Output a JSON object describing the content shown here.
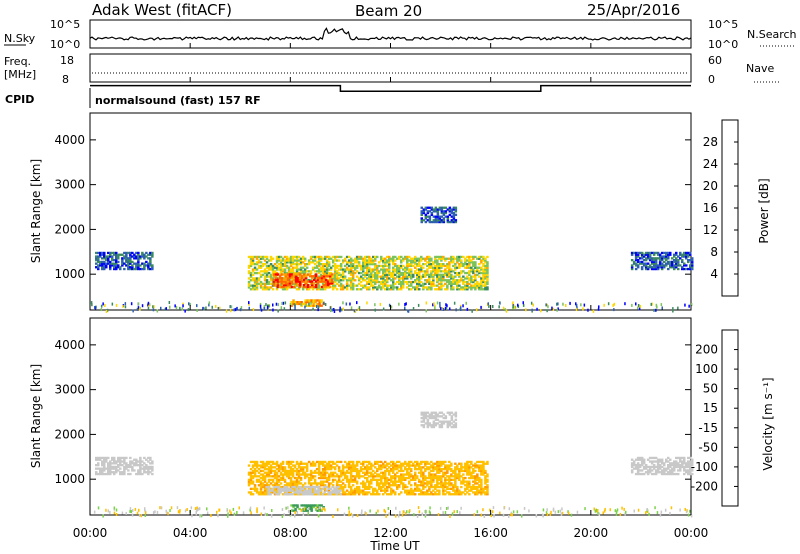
{
  "header": {
    "site": "Adak West (fitACF)",
    "beam": "Beam 20",
    "date": "25/Apr/2016"
  },
  "noise_panel": {
    "left_label": "N.Sky",
    "right_label": "N.Search",
    "left_ticks": [
      "10^5",
      "10^0"
    ],
    "right_ticks": [
      "10^5",
      "10^0"
    ]
  },
  "freq_panel": {
    "left_label_1": "Freq.",
    "left_label_2": "[MHz]",
    "right_label": "Nave",
    "left_ticks": [
      "18",
      "8"
    ],
    "right_ticks": [
      "60",
      "0"
    ]
  },
  "cpid": {
    "label": "CPID",
    "text": "normalsound (fast) 157 RF"
  },
  "power_panel": {
    "ylabel": "Slant Range [km]",
    "yticks": [
      "4000",
      "3000",
      "2000",
      "1000"
    ],
    "colorbar_label": "Power [dB]",
    "colorbar_ticks": [
      "28",
      "24",
      "20",
      "16",
      "12",
      "8",
      "4"
    ],
    "colorbar_colors": [
      "#ff0000",
      "#ff6a00",
      "#ffa500",
      "#ffd700",
      "#7cc35a",
      "#3a8a5c",
      "#2e5fb3",
      "#0000ff"
    ]
  },
  "velocity_panel": {
    "ylabel": "Slant Range [km]",
    "yticks": [
      "4000",
      "3000",
      "2000",
      "1000"
    ],
    "colorbar_label": "Velocity [m s⁻¹]",
    "colorbar_ticks": [
      "200",
      "100",
      "50",
      "15",
      "-15",
      "-50",
      "-100",
      "-200"
    ],
    "colorbar_colors": [
      "#1f2fc2",
      "#2e7bbf",
      "#3a9a5a",
      "#7bd24a",
      "#c8c8c8",
      "#ffc000",
      "#ff9a00",
      "#ff5000",
      "#ff0000"
    ]
  },
  "xaxis": {
    "label": "Time UT",
    "ticks": [
      "00:00",
      "04:00",
      "08:00",
      "12:00",
      "16:00",
      "20:00",
      "00:00"
    ]
  },
  "chart_data": [
    {
      "type": "heatmap",
      "title": "Power",
      "xlabel": "Time UT",
      "ylabel": "Slant Range [km]",
      "xlim": [
        0,
        24
      ],
      "ylim": [
        200,
        4600
      ],
      "colorbar": {
        "label": "Power [dB]",
        "range": [
          0,
          32
        ]
      },
      "regions": [
        {
          "t_start": 0.2,
          "t_end": 2.5,
          "r_low": 1100,
          "r_high": 1500,
          "power_db": 6
        },
        {
          "t_start": 6.3,
          "t_end": 15.9,
          "r_low": 650,
          "r_high": 1400,
          "power_db": 16
        },
        {
          "t_start": 7.3,
          "t_end": 9.7,
          "r_low": 700,
          "r_high": 1000,
          "power_db": 26
        },
        {
          "t_start": 8.0,
          "t_end": 9.3,
          "r_low": 280,
          "r_high": 420,
          "power_db": 22
        },
        {
          "t_start": 13.2,
          "t_end": 14.6,
          "r_low": 2150,
          "r_high": 2500,
          "power_db": 6
        },
        {
          "t_start": 21.6,
          "t_end": 24.0,
          "r_low": 1100,
          "r_high": 1500,
          "power_db": 6
        }
      ]
    },
    {
      "type": "heatmap",
      "title": "Velocity",
      "xlabel": "Time UT",
      "ylabel": "Slant Range [km]",
      "xlim": [
        0,
        24
      ],
      "ylim": [
        200,
        4600
      ],
      "colorbar": {
        "label": "Velocity [m s⁻¹]",
        "range": [
          -200,
          200
        ]
      },
      "regions": [
        {
          "t_start": 0.2,
          "t_end": 2.5,
          "r_low": 1100,
          "r_high": 1500,
          "velocity": 0
        },
        {
          "t_start": 6.3,
          "t_end": 15.9,
          "r_low": 650,
          "r_high": 1400,
          "velocity": -40
        },
        {
          "t_start": 7.0,
          "t_end": 10.0,
          "r_low": 650,
          "r_high": 850,
          "velocity": 0
        },
        {
          "t_start": 8.0,
          "t_end": 9.3,
          "r_low": 280,
          "r_high": 420,
          "velocity": 60
        },
        {
          "t_start": 13.2,
          "t_end": 14.6,
          "r_low": 2150,
          "r_high": 2500,
          "velocity": 0
        },
        {
          "t_start": 21.6,
          "t_end": 24.0,
          "r_low": 1100,
          "r_high": 1500,
          "velocity": 0
        }
      ]
    },
    {
      "type": "line",
      "title": "Frequency",
      "ylabel": "Freq. [MHz]",
      "series": [
        {
          "x": [
            0,
            10,
            10,
            18,
            18,
            24
          ],
          "values": [
            11,
            11,
            9,
            9,
            11,
            11
          ]
        }
      ]
    }
  ]
}
